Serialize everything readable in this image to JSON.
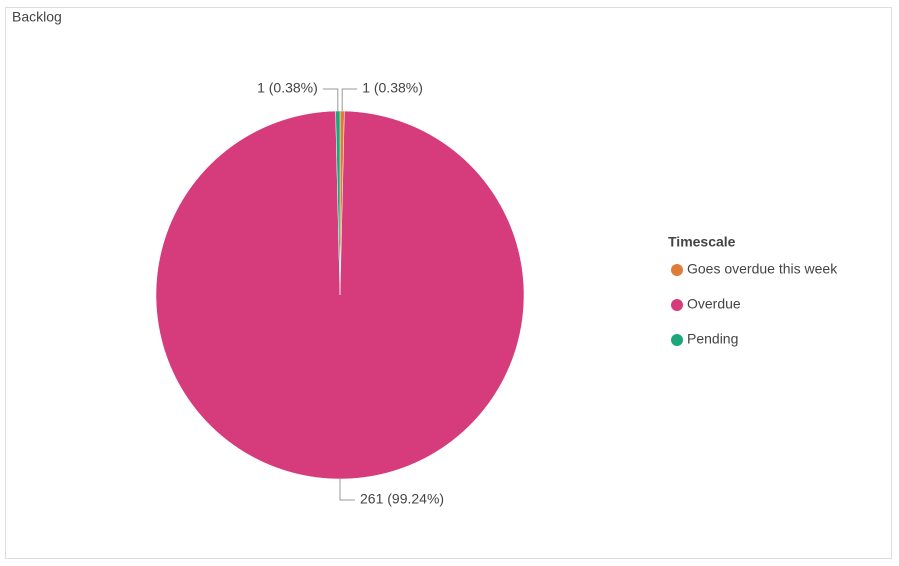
{
  "chart_data": {
    "type": "pie",
    "title": "Backlog",
    "legend_title": "Timescale",
    "categories": [
      "Goes overdue this week",
      "Overdue",
      "Pending"
    ],
    "values": [
      1,
      261,
      1
    ],
    "value_labels": [
      "1 (0.38%)",
      "261 (99.24%)",
      "1 (0.38%)"
    ],
    "colors": [
      "#e07b39",
      "#d63c7c",
      "#1ea67b"
    ],
    "legend": "right"
  }
}
